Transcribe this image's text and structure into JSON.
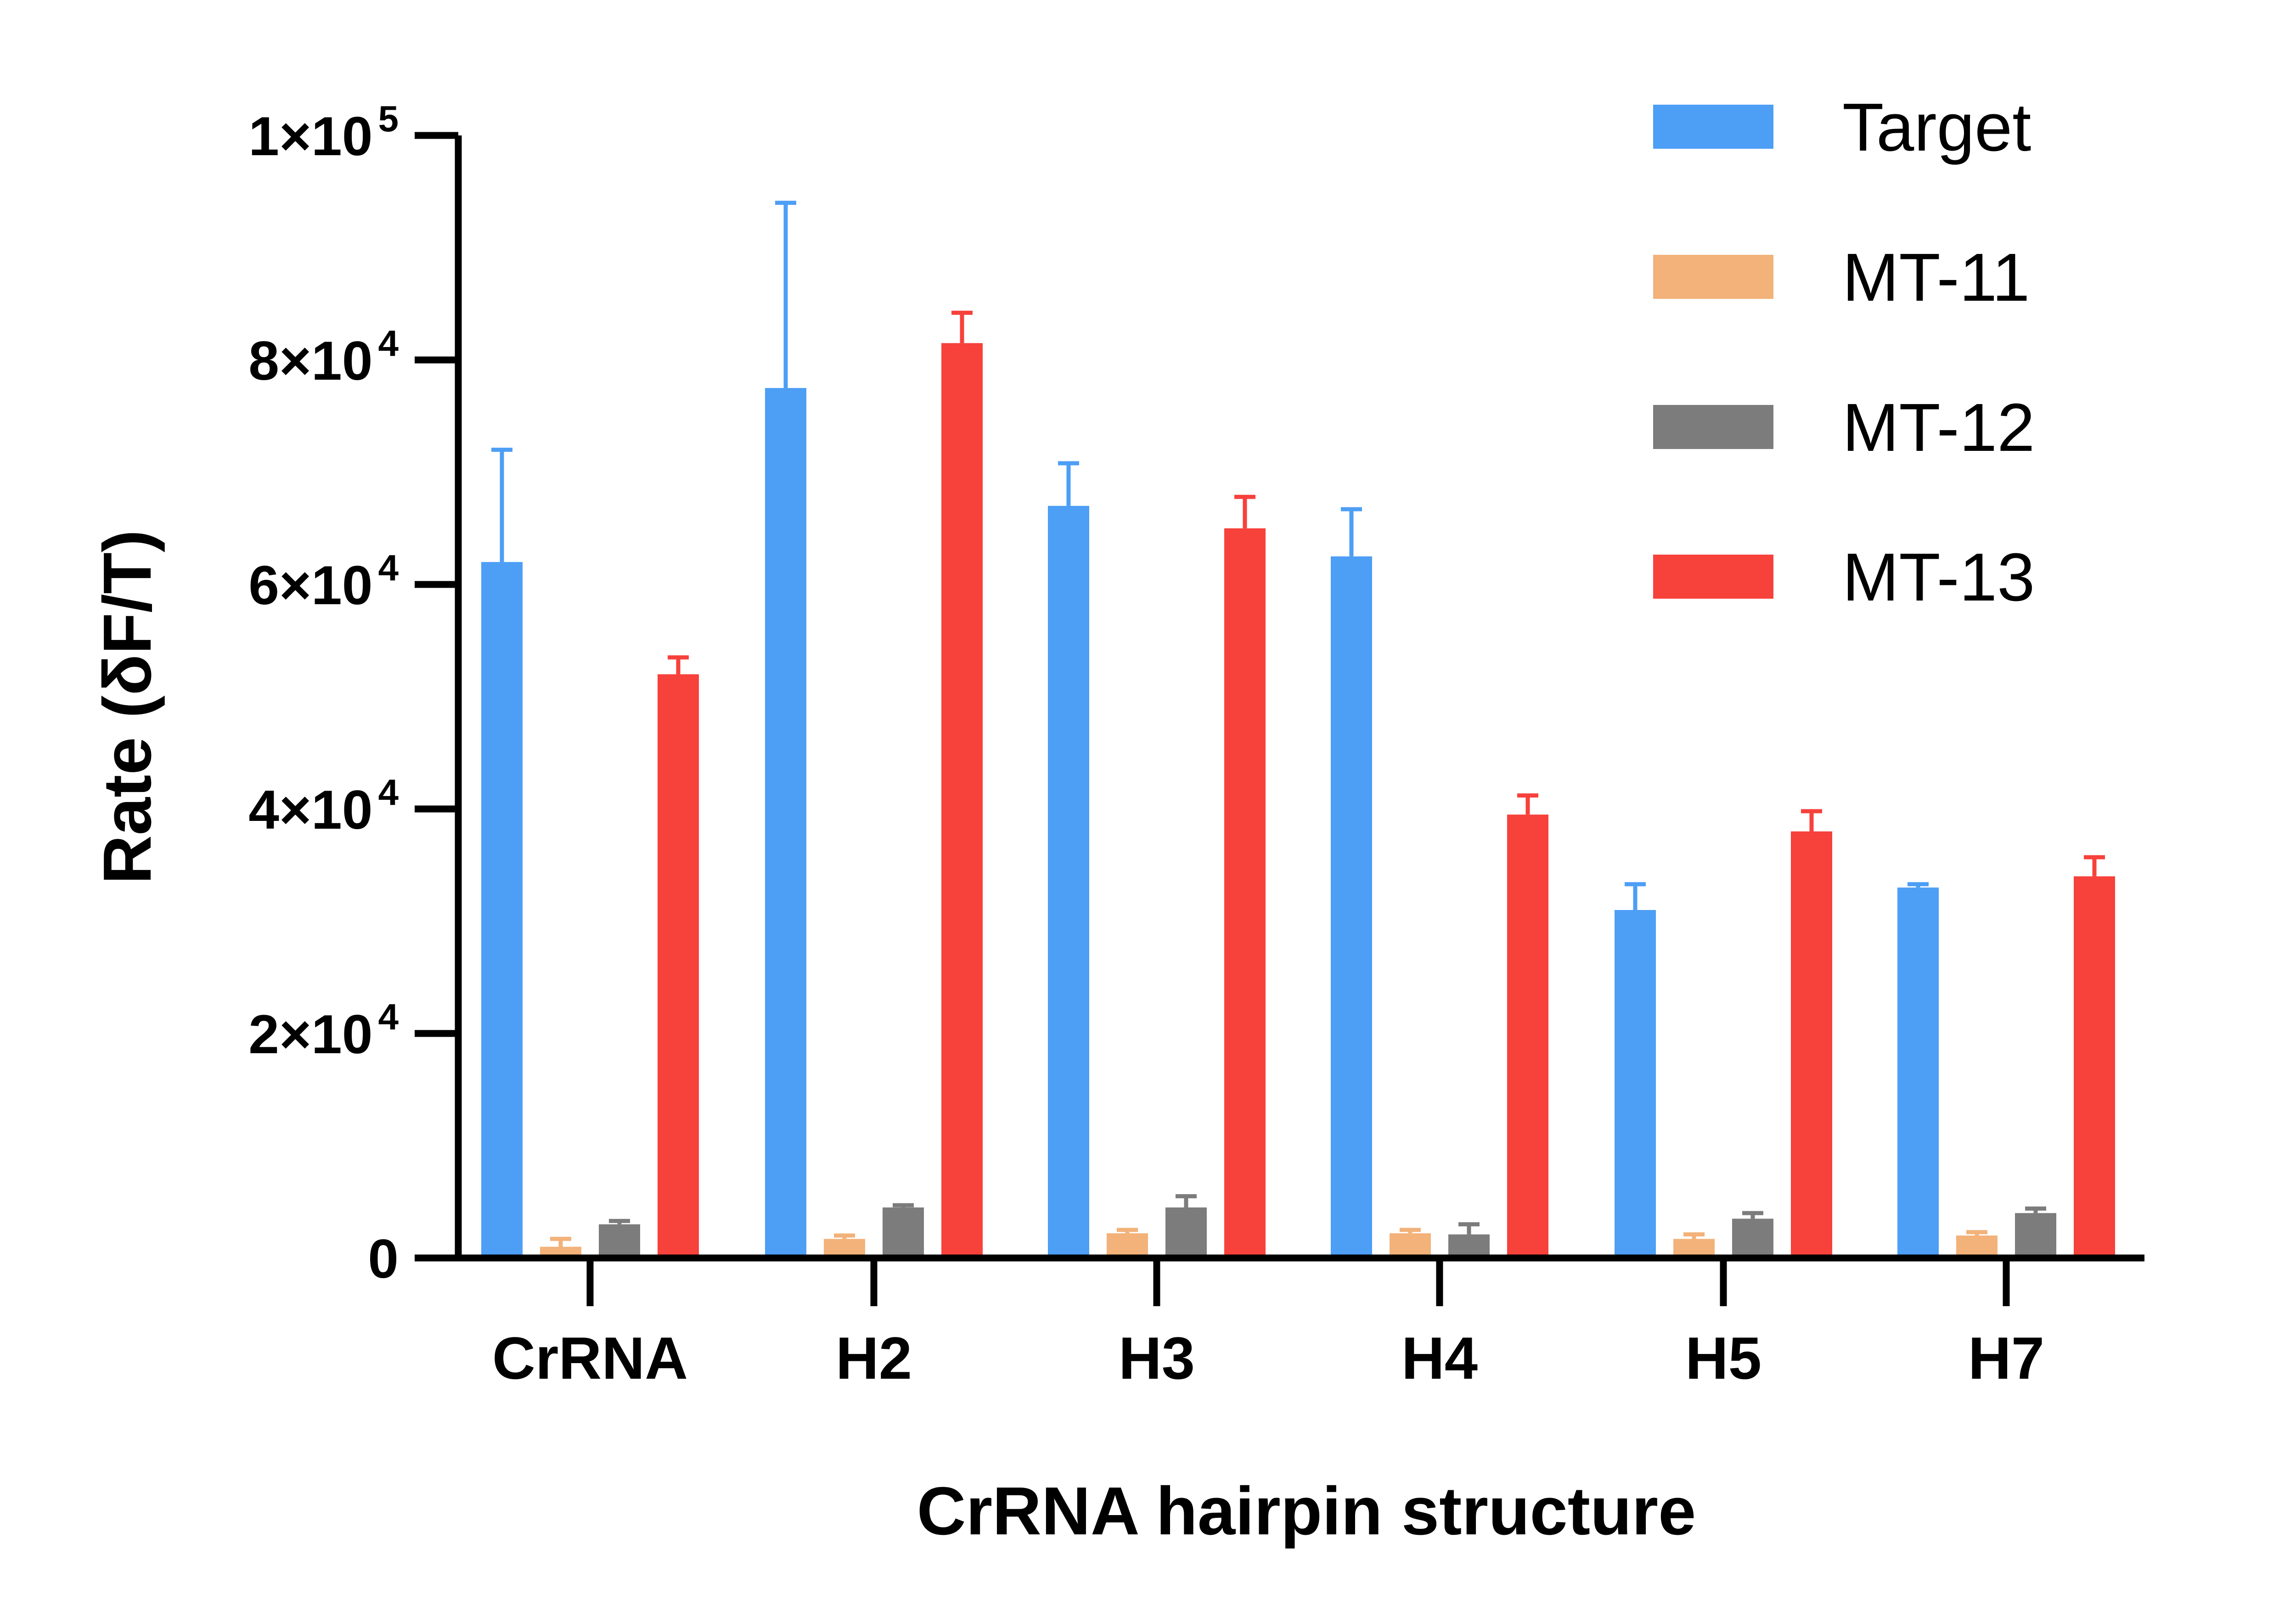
{
  "chart_data": {
    "type": "bar",
    "title": "",
    "xlabel": "CrRNA hairpin structure",
    "ylabel": "Rate (δF/T)",
    "ylim": [
      0,
      100000
    ],
    "yticks": [
      {
        "value": 0,
        "label": "0",
        "exp": ""
      },
      {
        "value": 20000,
        "label": "2×10",
        "exp": "4"
      },
      {
        "value": 40000,
        "label": "4×10",
        "exp": "4"
      },
      {
        "value": 60000,
        "label": "6×10",
        "exp": "4"
      },
      {
        "value": 80000,
        "label": "8×10",
        "exp": "4"
      },
      {
        "value": 100000,
        "label": "1×10",
        "exp": "5"
      }
    ],
    "categories": [
      "CrRNA",
      "H2",
      "H3",
      "H4",
      "H5",
      "H7"
    ],
    "series": [
      {
        "name": "Target",
        "color": "#4d9ef5",
        "values": [
          62000,
          77500,
          67000,
          62500,
          31000,
          33000
        ],
        "errors": [
          10000,
          16500,
          3800,
          4200,
          2300,
          300
        ]
      },
      {
        "name": "MT-11",
        "color": "#f2b27a",
        "values": [
          1000,
          1700,
          2200,
          2200,
          1700,
          2000
        ],
        "errors": [
          700,
          300,
          300,
          300,
          400,
          300
        ]
      },
      {
        "name": "MT-12",
        "color": "#7c7c7c",
        "values": [
          3000,
          4500,
          4500,
          2100,
          3500,
          4000
        ],
        "errors": [
          300,
          200,
          1000,
          900,
          500,
          400
        ]
      },
      {
        "name": "MT-13",
        "color": "#f7413b",
        "values": [
          52000,
          81500,
          65000,
          39500,
          38000,
          34000
        ],
        "errors": [
          1500,
          2700,
          2800,
          1700,
          1800,
          1700
        ]
      }
    ],
    "grid": false,
    "legend_position": "top-right"
  }
}
